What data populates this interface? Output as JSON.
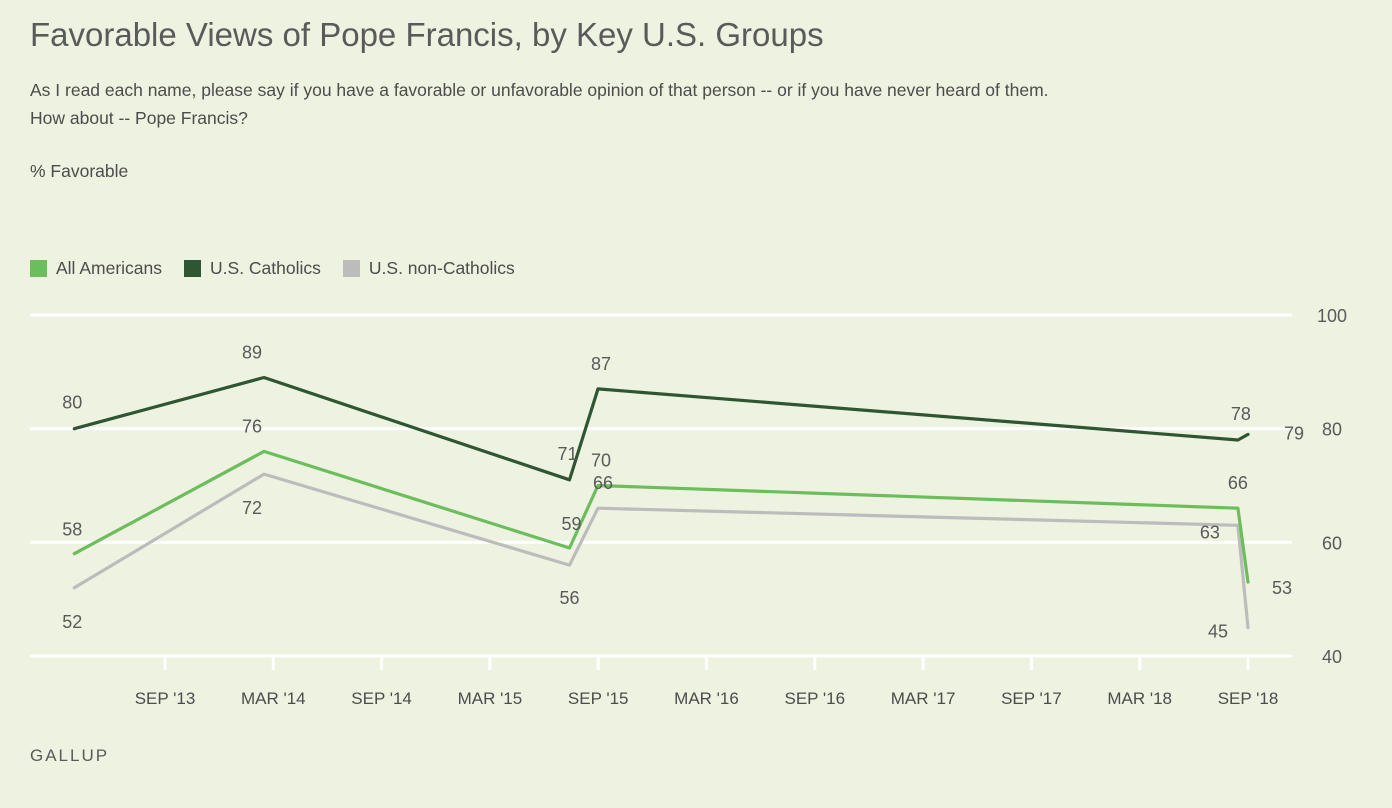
{
  "title": "Favorable Views of Pope Francis, by Key U.S. Groups",
  "subtitle": "As I read each name, please say if you have a favorable or unfavorable opinion of that person -- or if you have never heard of them. How about -- Pope Francis?",
  "ylabel": "% Favorable",
  "source": "GALLUP",
  "colors": {
    "all": "#6cbd5c",
    "catholics": "#2f5632",
    "noncatholics": "#bcbcbc",
    "grid": "#ffffff",
    "text": "#5a5a5a"
  },
  "chart_data": {
    "type": "line",
    "title": "Favorable Views of Pope Francis, by Key U.S. Groups",
    "ylabel": "% Favorable",
    "ylim": [
      40,
      100
    ],
    "yticks": [
      40,
      60,
      80,
      100
    ],
    "x_ticks": [
      "SEP '13",
      "MAR '14",
      "SEP '14",
      "MAR '15",
      "SEP '15",
      "MAR '16",
      "SEP '16",
      "MAR '17",
      "SEP '17",
      "MAR '18",
      "SEP '18"
    ],
    "x_range": [
      "2013-04-01",
      "2018-09-15"
    ],
    "x": [
      "2013-04-01",
      "2014-02-15",
      "2015-07-15",
      "2015-09-01",
      "2018-08-15",
      "2018-09-01"
    ],
    "grid": true,
    "legend": "top-left",
    "series": [
      {
        "name": "All Americans",
        "key": "all",
        "values": [
          58,
          76,
          59,
          70,
          66,
          53
        ]
      },
      {
        "name": "U.S. Catholics",
        "key": "catholics",
        "values": [
          80,
          89,
          71,
          87,
          78,
          79
        ]
      },
      {
        "name": "U.S. non-Catholics",
        "key": "noncatholics",
        "values": [
          52,
          72,
          56,
          66,
          63,
          45
        ]
      }
    ]
  }
}
